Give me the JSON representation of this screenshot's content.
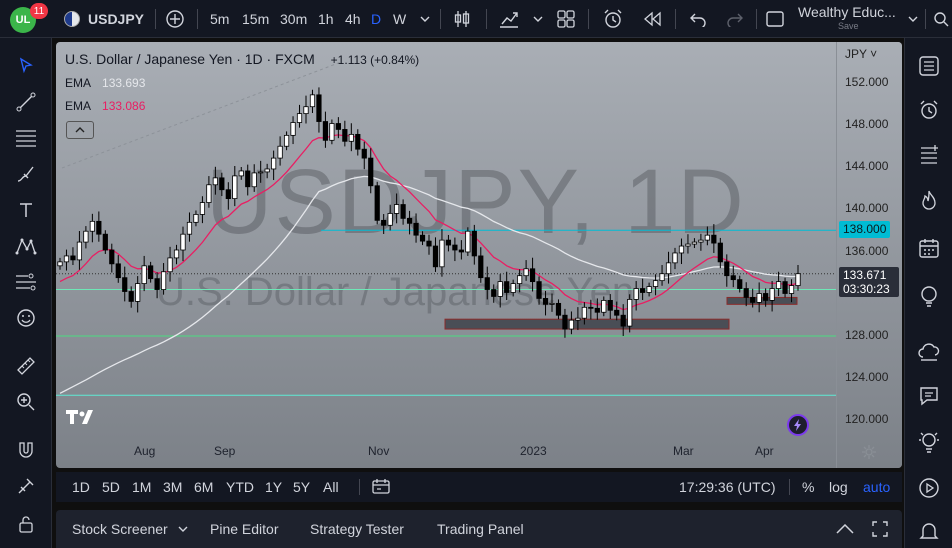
{
  "topbar": {
    "notification_count": "11",
    "symbol": "USDJPY",
    "intervals": [
      "5m",
      "15m",
      "30m",
      "1h",
      "4h",
      "D",
      "W"
    ],
    "active_interval": "D",
    "account_name": "Wealthy Educ...",
    "save_label": "Save"
  },
  "legend": {
    "title": "U.S. Dollar / Japanese Yen · 1D · FXCM",
    "change": "+1.113 (+0.84%)",
    "ema1_label": "EMA",
    "ema1_value": "133.693",
    "ema2_label": "EMA",
    "ema2_value": "133.086"
  },
  "watermark": {
    "big": "USDJPY, 1D",
    "sub": "U.S. Dollar / Japanese Yen"
  },
  "price_scale": {
    "currency": "JPY",
    "ticks": [
      "152.000",
      "148.000",
      "144.000",
      "140.000",
      "136.000",
      "132.000",
      "128.000",
      "124.000",
      "120.000"
    ],
    "level_tag": "138.000",
    "last_price": "133.671",
    "countdown": "03:30:23"
  },
  "time_axis": [
    "Aug",
    "Sep",
    "Nov",
    "2023",
    "Mar",
    "Apr"
  ],
  "range_bar": {
    "ranges": [
      "1D",
      "5D",
      "1M",
      "3M",
      "6M",
      "YTD",
      "1Y",
      "5Y",
      "All"
    ],
    "clock": "17:29:36 (UTC)",
    "percent": "%",
    "log": "log",
    "auto": "auto"
  },
  "bottom_panel": {
    "tabs": [
      "Stock Screener",
      "Pine Editor",
      "Strategy Tester",
      "Trading Panel"
    ]
  },
  "colors": {
    "ema_fast": "#e5e7eb",
    "ema_slow": "#e91e63",
    "level_line": "#00bcd4",
    "accent": "#2962ff"
  },
  "chart_data": {
    "type": "candlestick",
    "symbol": "USDJPY",
    "timeframe": "1D",
    "ylim": [
      119,
      153
    ],
    "horizontal_levels": [
      138.0,
      132.0,
      127.3,
      121.3
    ],
    "zones": [
      {
        "from": 128.0,
        "to": 129.0
      },
      {
        "from": 130.5,
        "to": 131.2
      }
    ],
    "close_path": [
      134.8,
      135.4,
      135.0,
      136.8,
      137.9,
      138.9,
      137.6,
      136.0,
      134.6,
      133.2,
      131.8,
      130.8,
      132.6,
      134.4,
      133.1,
      132.0,
      133.8,
      135.2,
      136.0,
      137.6,
      138.8,
      139.6,
      140.8,
      142.6,
      143.3,
      142.1,
      141.2,
      143.5,
      144.0,
      142.4,
      143.8,
      143.9,
      144.2,
      145.3,
      146.5,
      147.6,
      148.9,
      149.8,
      150.5,
      151.7,
      149.0,
      147.1,
      148.8,
      148.2,
      147.0,
      147.7,
      146.2,
      145.3,
      142.5,
      139.0,
      138.5,
      139.7,
      140.6,
      139.2,
      138.7,
      137.5,
      136.9,
      136.4,
      134.3,
      137.0,
      136.5,
      136.0,
      135.8,
      137.9,
      135.4,
      133.2,
      132.0,
      131.3,
      132.8,
      131.7,
      132.6,
      133.4,
      134.1,
      132.8,
      131.1,
      130.5,
      130.6,
      129.4,
      128.0,
      128.9,
      129.1,
      130.2,
      130.1,
      129.7,
      130.9,
      129.9,
      129.4,
      128.3,
      131.0,
      132.1,
      131.7,
      132.3,
      132.9,
      133.6,
      134.7,
      135.7,
      136.4,
      136.6,
      136.8,
      137.0,
      137.5,
      136.7,
      134.8,
      133.4,
      133.0,
      132.1,
      131.2,
      130.7,
      131.6,
      130.9,
      132.1,
      132.8,
      131.6,
      132.4,
      133.6
    ]
  }
}
